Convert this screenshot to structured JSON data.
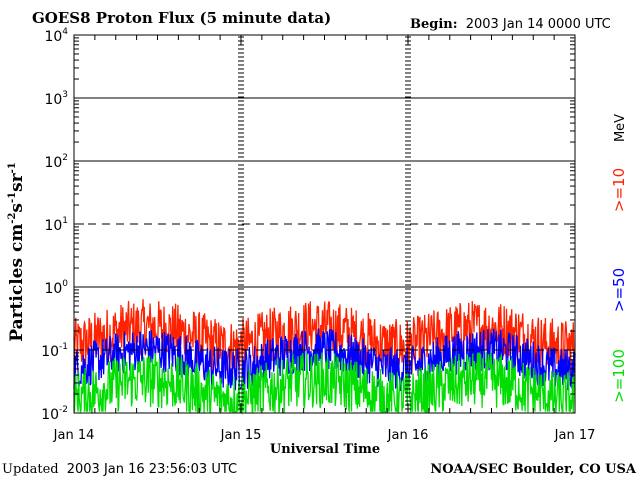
{
  "chart_data": {
    "type": "line",
    "title": "GOES8 Proton Flux (5 minute data)",
    "begin_label": "Begin:",
    "begin_value": "2003 Jan 14 0000 UTC",
    "ylabel_main": "Particles cm",
    "ylabel_exp1": "-2",
    "ylabel_mid1": "s",
    "ylabel_exp2": "-1",
    "ylabel_mid2": "sr",
    "ylabel_exp3": "-1",
    "xlabel": "Universal Time",
    "y_scale": "log",
    "ylim": [
      0.01,
      10000
    ],
    "y_ticks": [
      {
        "base": "10",
        "exp": "4"
      },
      {
        "base": "10",
        "exp": "3"
      },
      {
        "base": "10",
        "exp": "2"
      },
      {
        "base": "10",
        "exp": "1"
      },
      {
        "base": "10",
        "exp": "0"
      },
      {
        "base": "10",
        "exp": "-1"
      },
      {
        "base": "10",
        "exp": "-2"
      }
    ],
    "x_ticks": [
      "Jan 14",
      "Jan 15",
      "Jan 16",
      "Jan 17"
    ],
    "xlim_days": [
      0,
      3
    ],
    "threshold_lines": [
      {
        "value": 1000,
        "style": "solid"
      },
      {
        "value": 100,
        "style": "solid"
      },
      {
        "value": 10,
        "style": "dashed"
      },
      {
        "value": 1,
        "style": "solid"
      },
      {
        "value": 0.1,
        "style": "dashed"
      }
    ],
    "legend_unit": "MeV",
    "series": [
      {
        "name": ">=10",
        "color": "#ff2200",
        "base": 0.17,
        "spread": 0.45
      },
      {
        "name": ">=50",
        "color": "#0000ff",
        "base": 0.075,
        "spread": 0.35
      },
      {
        "name": ">=100",
        "color": "#00dd00",
        "base": 0.025,
        "spread": 0.45
      }
    ],
    "updated_label": "Updated",
    "updated_value": "2003 Jan 16 23:56:03 UTC",
    "credit": "NOAA/SEC Boulder, CO USA"
  }
}
